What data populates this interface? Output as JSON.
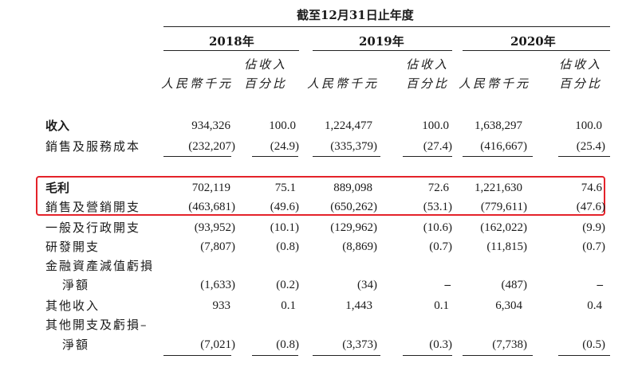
{
  "header": {
    "period": "截至12月31日止年度",
    "years": [
      "2018年",
      "2019年",
      "2020年"
    ],
    "col_amount": "人民幣千元",
    "col_pct_line1": "佔收入",
    "col_pct_line2": "百分比"
  },
  "rows": [
    {
      "label": "收入",
      "bold": true,
      "v": [
        "934,326",
        "100.0",
        "1,224,477",
        "100.0",
        "1,638,297",
        "100.0"
      ]
    },
    {
      "label": "銷售及服務成本",
      "v": [
        "(232,207)",
        "(24.9)",
        "(335,379)",
        "(27.4)",
        "(416,667)",
        "(25.4)"
      ]
    },
    {
      "label": "毛利",
      "bold": true,
      "v": [
        "702,119",
        "75.1",
        "889,098",
        "72.6",
        "1,221,630",
        "74.6"
      ]
    },
    {
      "label": "銷售及營銷開支",
      "v": [
        "(463,681)",
        "(49.6)",
        "(650,262)",
        "(53.1)",
        "(779,611)",
        "(47.6)"
      ]
    },
    {
      "label": "一般及行政開支",
      "v": [
        "(93,952)",
        "(10.1)",
        "(129,962)",
        "(10.6)",
        "(162,022)",
        "(9.9)"
      ]
    },
    {
      "label": "研發開支",
      "v": [
        "(7,807)",
        "(0.8)",
        "(8,869)",
        "(0.7)",
        "(11,815)",
        "(0.7)"
      ]
    },
    {
      "label": "金融資產減值虧損",
      "label2": "淨額",
      "v": [
        "(1,633)",
        "(0.2)",
        "(34)",
        "–",
        "(487)",
        "–"
      ]
    },
    {
      "label": "其他收入",
      "v": [
        "933",
        "0.1",
        "1,443",
        "0.1",
        "6,304",
        "0.4"
      ]
    },
    {
      "label": "其他開支及虧損–",
      "label2": "淨額",
      "v": [
        "(7,021)",
        "(0.8)",
        "(3,373)",
        "(0.3)",
        "(7,738)",
        "(0.5)"
      ]
    }
  ]
}
